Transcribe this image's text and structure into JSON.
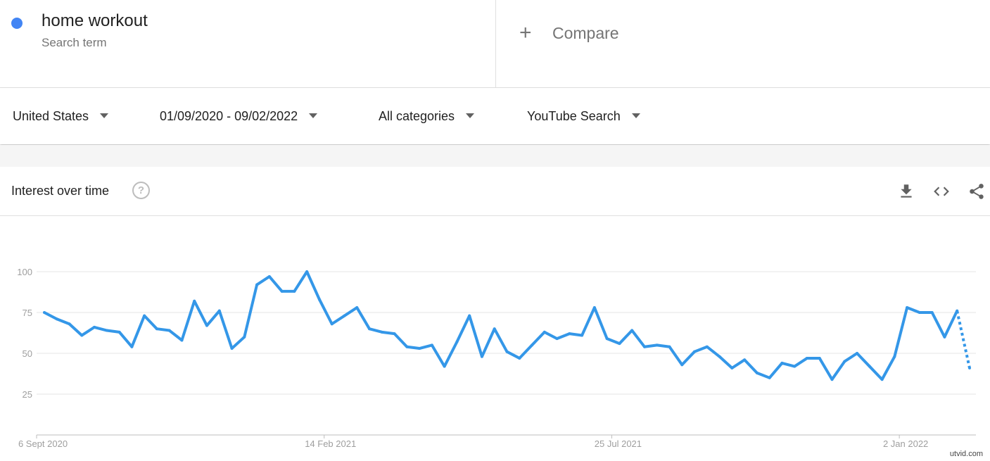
{
  "search_term": {
    "name": "home workout",
    "subtitle": "Search term",
    "color": "#4285f4"
  },
  "compare": {
    "icon": "plus-icon",
    "label": "Compare"
  },
  "filters": {
    "region": "United States",
    "date_range": "01/09/2020 - 09/02/2022",
    "category": "All categories",
    "property": "YouTube Search"
  },
  "card": {
    "title": "Interest over time",
    "help_icon": "?",
    "actions": [
      "download-icon",
      "embed-icon",
      "share-icon"
    ]
  },
  "watermark": "utvid.com",
  "chart_data": {
    "type": "line",
    "title": "",
    "xlabel": "",
    "ylabel": "",
    "ylim": [
      0,
      100
    ],
    "y_ticks": [
      "25",
      "50",
      "75",
      "100"
    ],
    "x_tick_labels": [
      {
        "label": "6 Sept 2020",
        "index": 0
      },
      {
        "label": "14 Feb 2021",
        "index": 23
      },
      {
        "label": "25 Jul 2021",
        "index": 46
      },
      {
        "label": "2 Jan 2022",
        "index": 69
      }
    ],
    "grid": true,
    "series_color": "#3497e8",
    "values": [
      75,
      71,
      68,
      61,
      66,
      64,
      63,
      54,
      73,
      65,
      64,
      58,
      82,
      67,
      76,
      53,
      60,
      92,
      97,
      88,
      88,
      100,
      83,
      68,
      73,
      78,
      65,
      63,
      62,
      54,
      53,
      55,
      42,
      57,
      73,
      48,
      65,
      51,
      47,
      55,
      63,
      59,
      62,
      61,
      78,
      59,
      56,
      64,
      54,
      55,
      54,
      43,
      51,
      54,
      48,
      41,
      46,
      38,
      35,
      44,
      42,
      47,
      47,
      34,
      45,
      50,
      42,
      34,
      48,
      78,
      75,
      75,
      60,
      76,
      41
    ],
    "partial_last_point": true
  }
}
